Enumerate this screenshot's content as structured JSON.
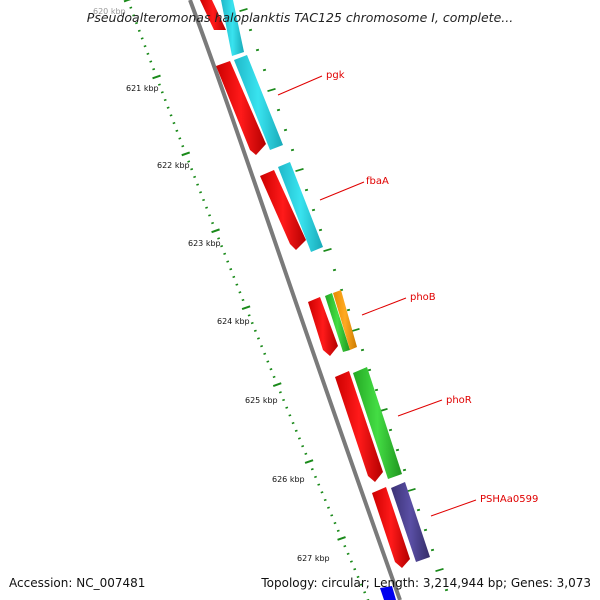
{
  "title": "Pseudoalteromonas haloplanktis TAC125 chromosome I, complete...",
  "footer": {
    "accession": "Accession: NC_007481",
    "summary": "Topology: circular; Length: 3,214,944 bp; Genes: 3,073"
  },
  "ticks": [
    "620 kbp",
    "621 kbp",
    "622 kbp",
    "623 kbp",
    "624 kbp",
    "625 kbp",
    "626 kbp",
    "627 kbp"
  ],
  "genes": [
    "pgk",
    "fbaA",
    "phoB",
    "phoR",
    "PSHAa0599"
  ],
  "colors": {
    "backbone": "#808080",
    "cds": "#ff0000",
    "cds_dark": "#c00000",
    "gene_pgk_fbaA": "#29d6e6",
    "gene_phoB": "#33cc33",
    "gene_phoB_inner": "#ff9900",
    "gene_phoR": "#33cc33",
    "gene_PSHAa0599": "#4a3f8f",
    "tick_mark": "#1a8a1a",
    "label": "#e00000",
    "leader": "#e00000"
  }
}
